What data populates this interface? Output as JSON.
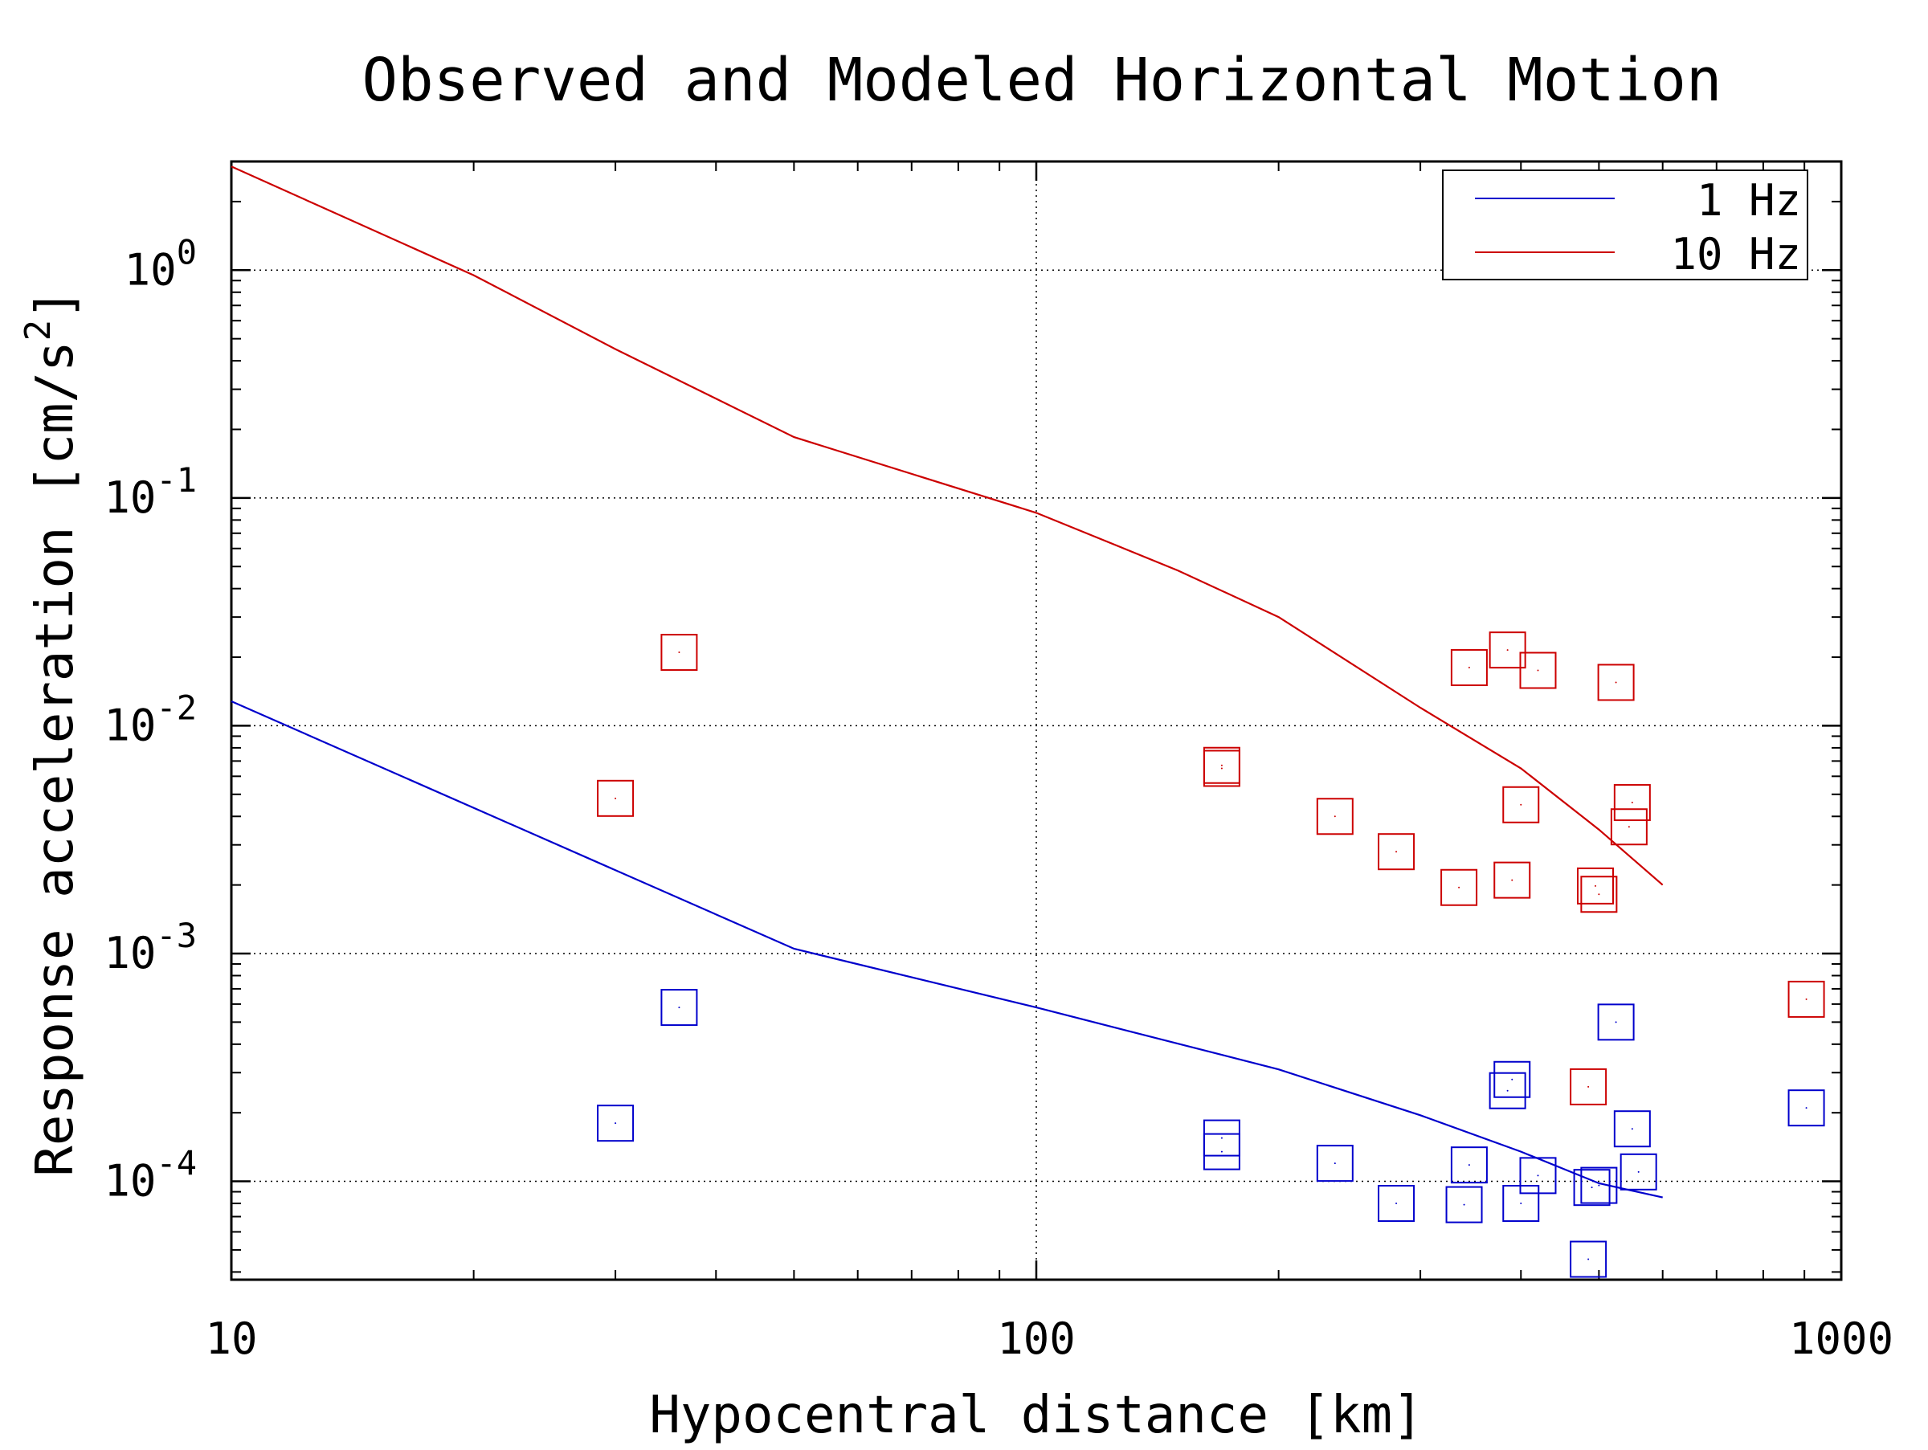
{
  "chart_data": {
    "type": "scatter",
    "title": "Observed and Modeled Horizontal Motion",
    "xlabel": "Hypocentral distance [km]",
    "ylabel_text": "Response acceleration [cm/s",
    "ylabel_sup": "2",
    "ylabel_close": "]",
    "xscale": "log",
    "yscale": "log",
    "xlim": [
      10,
      1000
    ],
    "ylim": [
      3.7e-05,
      3.0
    ],
    "grid": true,
    "legend_position": "top-right",
    "x_ticks": [
      {
        "value": 10,
        "label": "10"
      },
      {
        "value": 100,
        "label": "100"
      },
      {
        "value": 1000,
        "label": "1000"
      }
    ],
    "y_ticks": [
      {
        "value": 1,
        "base": "10",
        "exp": "0"
      },
      {
        "value": 0.1,
        "base": "10",
        "exp": "-1"
      },
      {
        "value": 0.01,
        "base": "10",
        "exp": "-2"
      },
      {
        "value": 0.001,
        "base": "10",
        "exp": "-3"
      },
      {
        "value": 0.0001,
        "base": "10",
        "exp": "-4"
      }
    ],
    "series": [
      {
        "name": "1 Hz",
        "color": "#0000cc",
        "line_x": [
          10,
          50,
          100,
          200,
          300,
          400,
          500,
          600
        ],
        "line_y": [
          0.0128,
          0.00105,
          0.00058,
          0.00031,
          0.000195,
          0.000135,
          9.8e-05,
          8.5e-05
        ],
        "observed_x": [
          30,
          36,
          170,
          170,
          235,
          280,
          340,
          345,
          385,
          390,
          400,
          420,
          485,
          490,
          500,
          525,
          550,
          560,
          905
        ],
        "observed_y": [
          0.00018,
          0.00058,
          0.000155,
          0.000135,
          0.00012,
          8e-05,
          7.9e-05,
          0.000118,
          0.00025,
          0.00028,
          8e-05,
          0.000106,
          4.55e-05,
          9.4e-05,
          9.6e-05,
          0.0005,
          0.00017,
          0.00011,
          0.00021
        ]
      },
      {
        "name": "10 Hz",
        "color": "#cc0000",
        "line_x": [
          10,
          20,
          30,
          50,
          100,
          150,
          200,
          300,
          400,
          500,
          600
        ],
        "line_y": [
          2.85,
          0.95,
          0.45,
          0.185,
          0.086,
          0.048,
          0.03,
          0.012,
          0.0065,
          0.0035,
          0.002
        ],
        "observed_x": [
          30,
          36,
          170,
          170,
          235,
          280,
          335,
          345,
          385,
          390,
          400,
          420,
          485,
          495,
          500,
          525,
          545,
          550,
          905
        ],
        "observed_y": [
          0.0048,
          0.021,
          0.0065,
          0.0067,
          0.004,
          0.0028,
          0.00195,
          0.018,
          0.0215,
          0.0021,
          0.0045,
          0.0175,
          0.00026,
          0.00198,
          0.00182,
          0.0155,
          0.0036,
          0.0046,
          0.00063
        ]
      }
    ]
  }
}
